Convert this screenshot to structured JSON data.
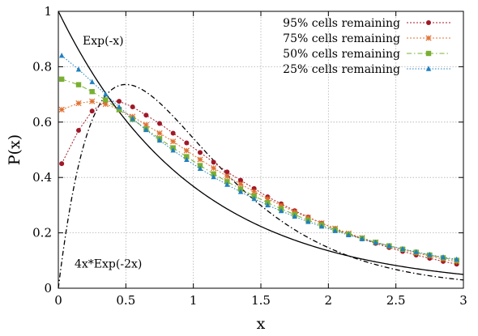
{
  "chart_data": {
    "type": "line",
    "xlabel": "x",
    "ylabel": "P(x)",
    "xlim": [
      0,
      3
    ],
    "ylim": [
      0,
      1
    ],
    "x_ticks": [
      0,
      0.5,
      1,
      1.5,
      2,
      2.5,
      3
    ],
    "x_tick_labels": [
      "0",
      "0.5",
      "1",
      "1.5",
      "2",
      "2.5",
      "3"
    ],
    "y_ticks": [
      0,
      0.2,
      0.4,
      0.6,
      0.8,
      1
    ],
    "y_tick_labels": [
      "0",
      "0.2",
      "0.4",
      "0.6",
      "0.8",
      "1"
    ],
    "grid": true,
    "legend_position": "top-right",
    "x": [
      0.025,
      0.15,
      0.25,
      0.35,
      0.45,
      0.55,
      0.65,
      0.75,
      0.85,
      0.95,
      1.05,
      1.15,
      1.25,
      1.35,
      1.45,
      1.55,
      1.65,
      1.75,
      1.85,
      1.95,
      2.05,
      2.15,
      2.25,
      2.35,
      2.45,
      2.55,
      2.65,
      2.75,
      2.85,
      2.95
    ],
    "series": [
      {
        "name": "95% cells remaining",
        "color": "#a01828",
        "marker": "circle",
        "values": [
          0.45,
          0.57,
          0.64,
          0.675,
          0.675,
          0.655,
          0.625,
          0.595,
          0.56,
          0.525,
          0.49,
          0.455,
          0.42,
          0.39,
          0.36,
          0.33,
          0.305,
          0.28,
          0.257,
          0.235,
          0.215,
          0.196,
          0.178,
          0.162,
          0.147,
          0.133,
          0.12,
          0.108,
          0.097,
          0.087
        ]
      },
      {
        "name": "75% cells remaining",
        "color": "#e07030",
        "marker": "x",
        "values": [
          0.645,
          0.668,
          0.675,
          0.665,
          0.645,
          0.62,
          0.59,
          0.56,
          0.53,
          0.497,
          0.465,
          0.434,
          0.404,
          0.376,
          0.349,
          0.323,
          0.299,
          0.276,
          0.255,
          0.235,
          0.216,
          0.198,
          0.182,
          0.166,
          0.152,
          0.139,
          0.127,
          0.116,
          0.105,
          0.096
        ]
      },
      {
        "name": "50% cells remaining",
        "color": "#78b030",
        "marker": "square",
        "values": [
          0.755,
          0.735,
          0.71,
          0.68,
          0.645,
          0.61,
          0.575,
          0.54,
          0.507,
          0.475,
          0.443,
          0.413,
          0.385,
          0.358,
          0.333,
          0.309,
          0.287,
          0.266,
          0.246,
          0.228,
          0.211,
          0.195,
          0.18,
          0.166,
          0.153,
          0.141,
          0.13,
          0.12,
          0.11,
          0.101
        ]
      },
      {
        "name": "25% cells remaining",
        "color": "#2080c0",
        "marker": "triangle",
        "values": [
          0.84,
          0.79,
          0.745,
          0.7,
          0.655,
          0.612,
          0.572,
          0.534,
          0.498,
          0.464,
          0.432,
          0.402,
          0.374,
          0.348,
          0.323,
          0.3,
          0.279,
          0.259,
          0.24,
          0.223,
          0.207,
          0.192,
          0.178,
          0.165,
          0.153,
          0.142,
          0.131,
          0.121,
          0.112,
          0.104
        ]
      }
    ],
    "curves": [
      {
        "label": "Exp(-x)",
        "formula": "exp(-x)",
        "color": "#000000",
        "style": "solid"
      },
      {
        "label": "4x*Exp(-2x)",
        "formula": "4*x*exp(-2*x)",
        "color": "#000000",
        "style": "dash-dot"
      }
    ]
  }
}
